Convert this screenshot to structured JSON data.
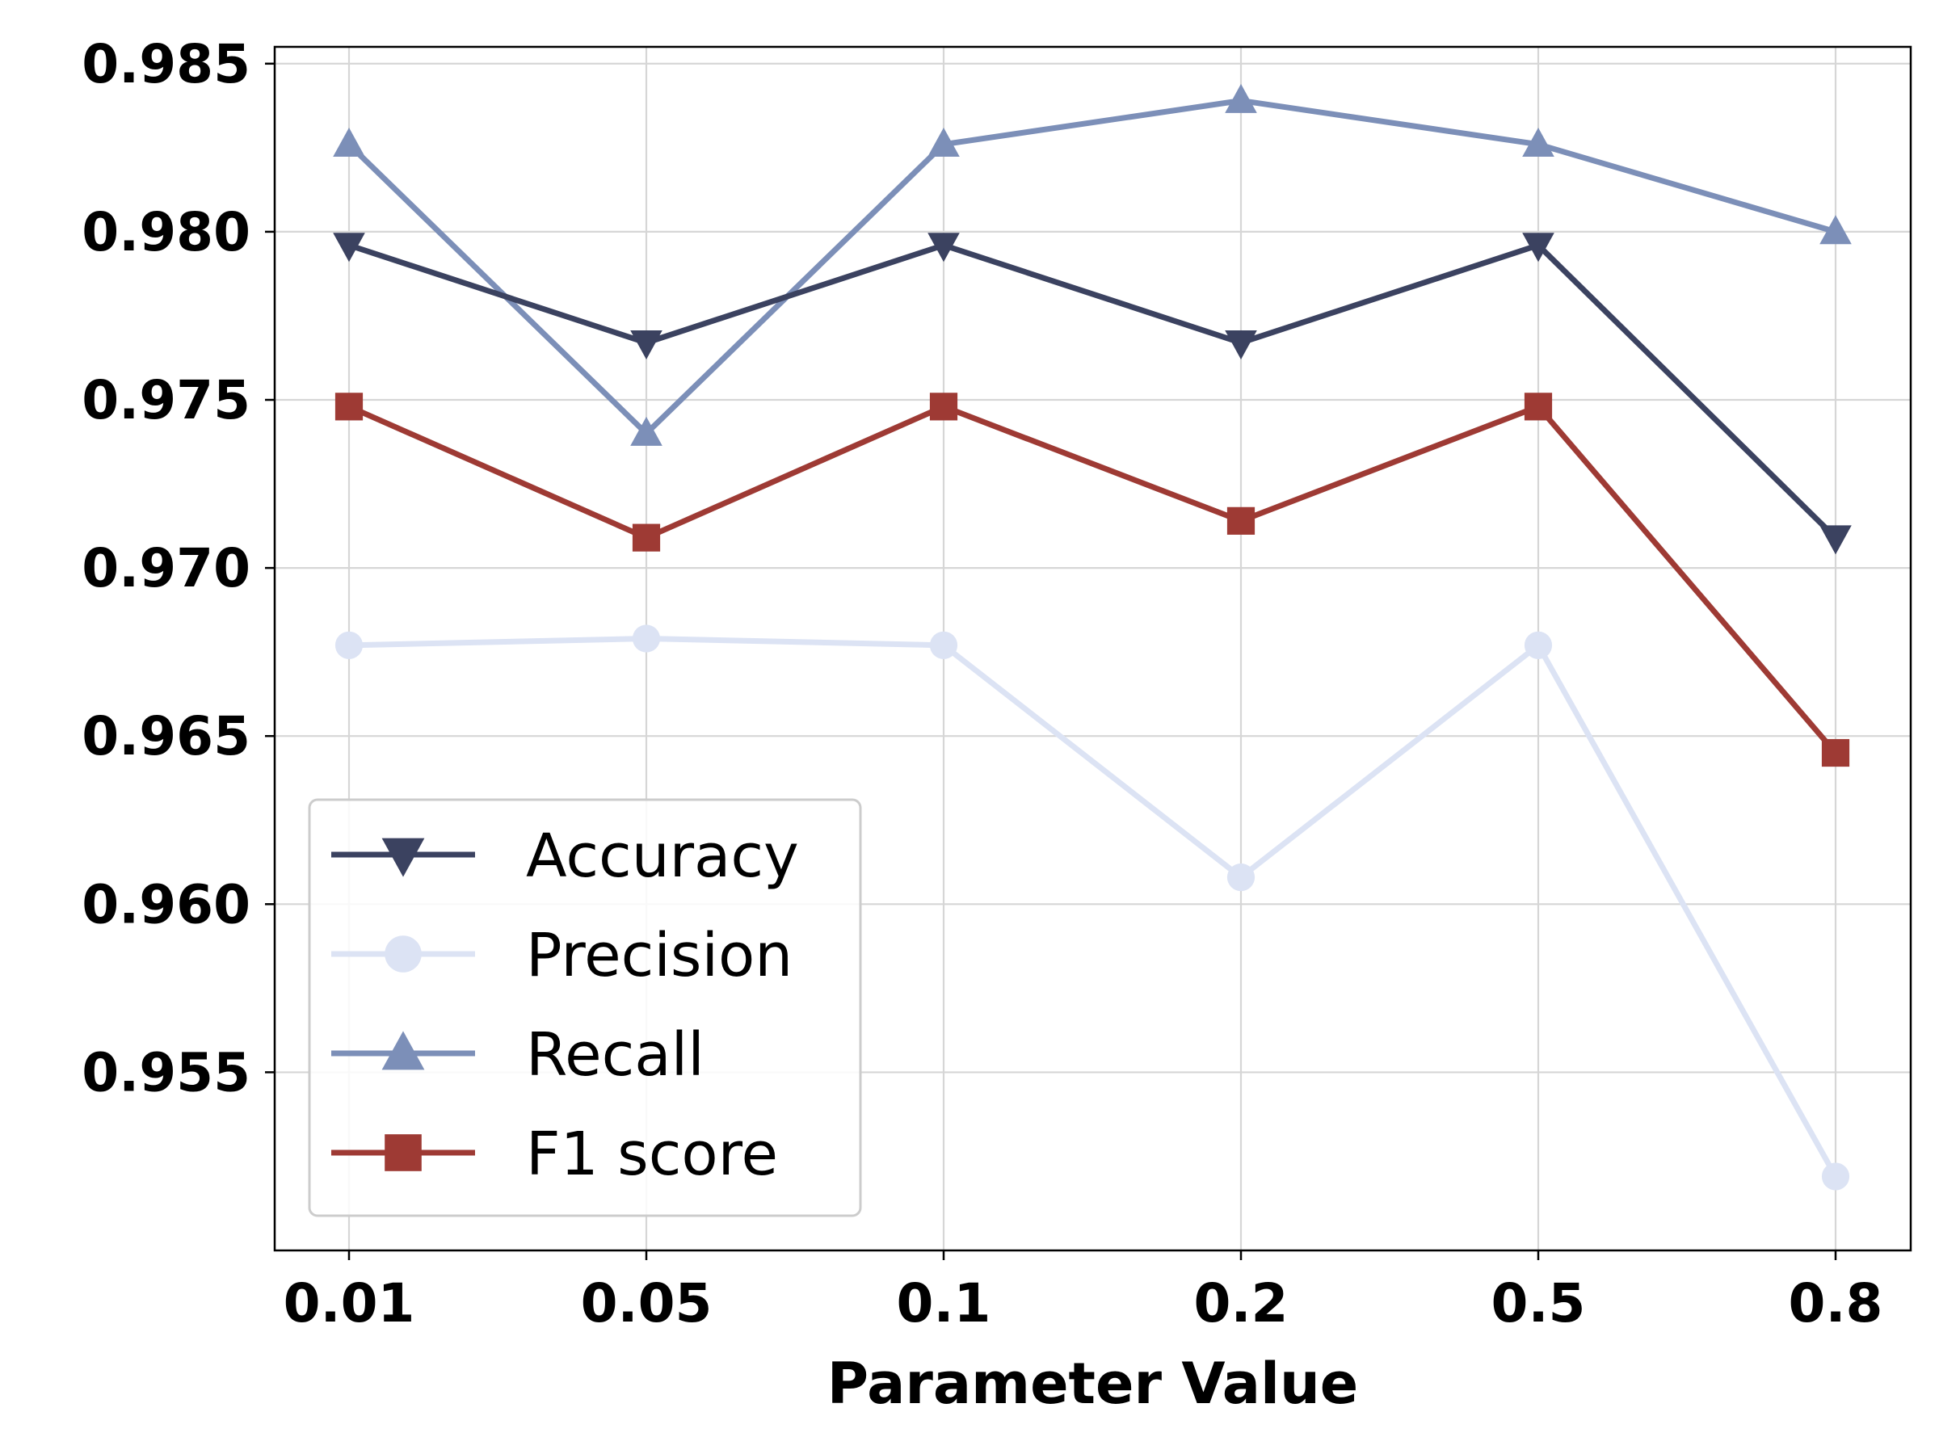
{
  "chart_data": {
    "type": "line",
    "title": "",
    "xlabel": "Parameter Value",
    "ylabel": "",
    "categories": [
      "0.01",
      "0.05",
      "0.1",
      "0.2",
      "0.5",
      "0.8"
    ],
    "ylim": [
      0.9497,
      0.9855
    ],
    "yticks": [
      0.955,
      0.96,
      0.965,
      0.97,
      0.975,
      0.98,
      0.985
    ],
    "ytick_labels": [
      "0.955",
      "0.960",
      "0.965",
      "0.970",
      "0.975",
      "0.980",
      "0.985"
    ],
    "grid": true,
    "legend_position": "lower-left",
    "series": [
      {
        "name": "Accuracy",
        "marker": "triangle-down",
        "color": "#3b4260",
        "values": [
          0.9796,
          0.9767,
          0.9796,
          0.9767,
          0.9796,
          0.9709
        ]
      },
      {
        "name": "Precision",
        "marker": "circle",
        "color": "#dce3f4",
        "values": [
          0.9677,
          0.9679,
          0.9677,
          0.9608,
          0.9677,
          0.9519
        ]
      },
      {
        "name": "Recall",
        "marker": "triangle-up",
        "color": "#7c8fb8",
        "values": [
          0.9826,
          0.974,
          0.9826,
          0.9839,
          0.9826,
          0.98
        ]
      },
      {
        "name": "F1 score",
        "marker": "square",
        "color": "#9e3a34",
        "values": [
          0.9748,
          0.9709,
          0.9748,
          0.9714,
          0.9748,
          0.9645
        ]
      }
    ]
  }
}
